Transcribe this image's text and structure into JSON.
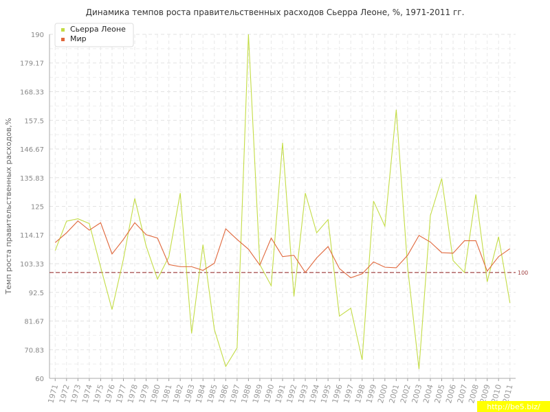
{
  "chart_data": {
    "type": "line",
    "title": "Динамика темпов роста правительственных расходов Сьерра Леоне, %, 1971-2011 гг.",
    "ylabel": "Темп роста правительственных расходов,%",
    "xlabel": "",
    "ylim": [
      60,
      190
    ],
    "y_ticks": [
      "60",
      "70.83",
      "81.67",
      "92.5",
      "103.33",
      "114.17",
      "125",
      "135.83",
      "146.67",
      "157.5",
      "168.33",
      "179.17",
      "190"
    ],
    "x": [
      "1971",
      "1972",
      "1973",
      "1974",
      "1975",
      "1976",
      "1977",
      "1978",
      "1979",
      "1980",
      "1981",
      "1982",
      "1983",
      "1984",
      "1985",
      "1986",
      "1987",
      "1988",
      "1989",
      "1990",
      "1991",
      "1992",
      "1993",
      "1994",
      "1995",
      "1996",
      "1997",
      "1998",
      "1999",
      "2000",
      "2001",
      "2002",
      "2003",
      "2004",
      "2005",
      "2006",
      "2007",
      "2008",
      "2009",
      "2010",
      "2011"
    ],
    "series": [
      {
        "name": "Сьерра Леоне",
        "color": "#c3dc44",
        "values": [
          108.3,
          119.4,
          120.3,
          118.5,
          102.0,
          86.0,
          105.0,
          128.0,
          110.0,
          97.5,
          106.0,
          130.0,
          77.0,
          110.5,
          78.5,
          64.5,
          71.5,
          190.0,
          103.0,
          95.0,
          149.0,
          91.0,
          130.0,
          115.0,
          120.0,
          83.5,
          86.5,
          67.0,
          127.0,
          117.5,
          161.5,
          102.0,
          63.5,
          121.5,
          135.5,
          104.5,
          100.0,
          129.5,
          96.5,
          113.5,
          88.5
        ]
      },
      {
        "name": "Мир",
        "color": "#e0663a",
        "values": [
          111.3,
          115.0,
          119.5,
          116.0,
          118.8,
          107.0,
          112.5,
          118.8,
          114.3,
          113.0,
          103.0,
          102.2,
          102.2,
          100.8,
          103.5,
          116.5,
          112.5,
          108.8,
          102.8,
          113.0,
          106.0,
          106.5,
          100.0,
          105.5,
          109.8,
          101.5,
          98.0,
          99.5,
          104.0,
          102.0,
          101.8,
          106.5,
          114.0,
          111.5,
          107.5,
          107.3,
          112.0,
          112.0,
          100.5,
          106.0,
          109.0
        ]
      }
    ],
    "reference_line": {
      "value": 100,
      "label": "100",
      "color": "#8b1a1a"
    },
    "grid": true,
    "legend": "top-left"
  },
  "watermark": "http://be5.biz/"
}
